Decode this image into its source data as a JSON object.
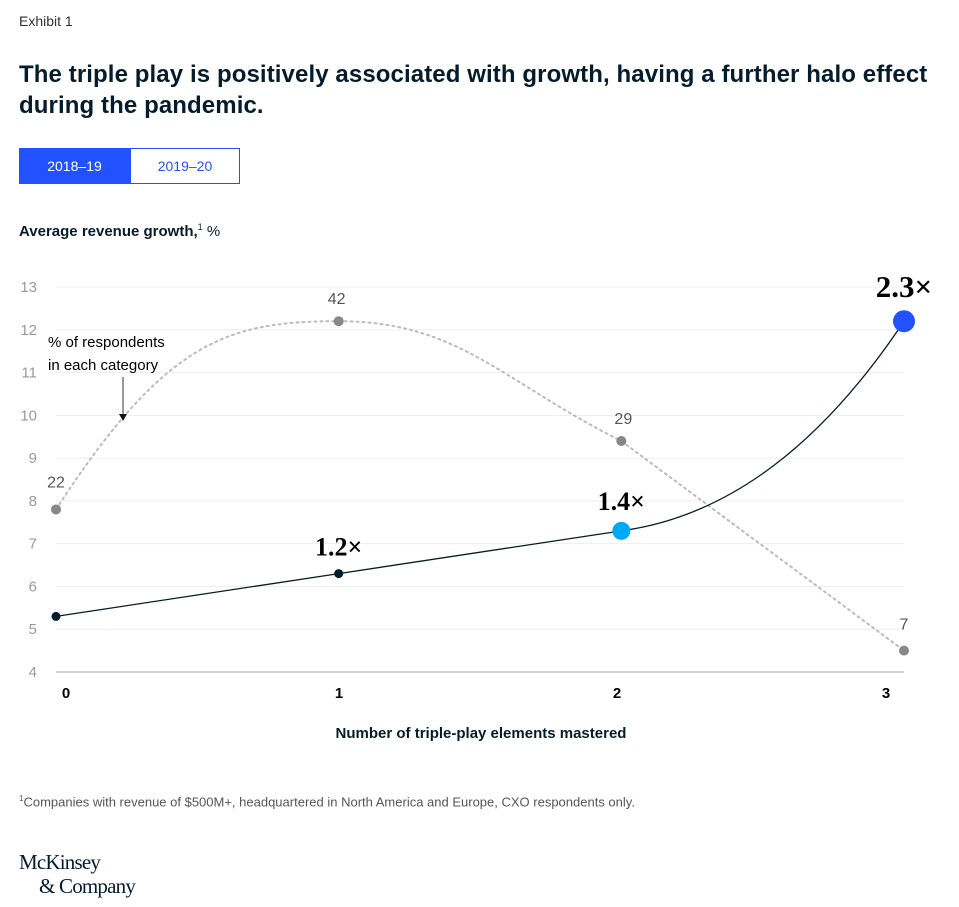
{
  "exhibit_label": "Exhibit 1",
  "title": "The triple play is positively associated with growth, having a further halo effect during the pandemic.",
  "tabs": [
    {
      "label": "2018–19",
      "active": true
    },
    {
      "label": "2019–20",
      "active": false
    }
  ],
  "y_axis_title": "Average revenue growth,",
  "y_axis_title_sup": "1",
  "y_axis_unit": "%",
  "x_axis_title": "Number of triple-play elements mastered",
  "annotation": {
    "line1": "% of respondents",
    "line2": "in each category"
  },
  "footnote_marker": "1",
  "footnote": "Companies with revenue of $500M+, headquartered in North America and Europe, CXO respondents only.",
  "logo": {
    "line1": "McKinsey",
    "line2": "& Company"
  },
  "colors": {
    "accent_blue": "#2251ff",
    "light_blue": "#00a9f4",
    "navy": "#051c2c",
    "respondent_gray": "#888888",
    "grid": "#eeeeee"
  },
  "chart_data": {
    "type": "line",
    "title": "The triple play is positively associated with growth, having a further halo effect during the pandemic.",
    "xlabel": "Number of triple-play elements mastered",
    "ylabel": "Average revenue growth, %",
    "x": [
      0,
      1,
      2,
      3
    ],
    "x_tick_labels": [
      "0",
      "1",
      "2",
      "3"
    ],
    "y_ticks": [
      4,
      5,
      6,
      7,
      8,
      9,
      10,
      11,
      12,
      13
    ],
    "ylim": [
      4,
      13
    ],
    "grid": true,
    "series": [
      {
        "name": "Average revenue growth",
        "values": [
          5.3,
          6.3,
          7.3,
          12.2
        ],
        "multiplier_labels": [
          "",
          "1.2×",
          "1.4×",
          "2.3×"
        ],
        "style": "solid"
      },
      {
        "name": "% of respondents in each category",
        "values": [
          7.8,
          12.2,
          9.4,
          4.5
        ],
        "point_labels": [
          "22",
          "42",
          "29",
          "7"
        ],
        "respondent_share_pct": [
          22,
          42,
          29,
          7
        ],
        "style": "dotted"
      }
    ]
  }
}
